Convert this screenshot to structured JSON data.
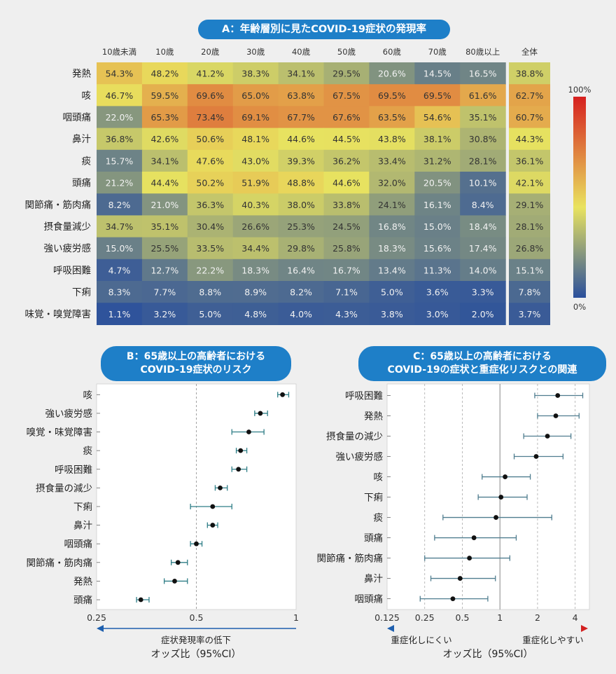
{
  "chart_data": [
    {
      "type": "heatmap",
      "title": "A：年齢層別に見たCOVID-19症状の発現率",
      "columns": [
        "10歳未満",
        "10歳",
        "20歳",
        "30歳",
        "40歳",
        "50歳",
        "60歳",
        "70歳",
        "80歳以上"
      ],
      "total_label": "全体",
      "rows": [
        "発熱",
        "咳",
        "咽頭痛",
        "鼻汁",
        "痰",
        "頭痛",
        "関節痛・筋肉痛",
        "摂食量減少",
        "強い疲労感",
        "呼吸困難",
        "下痢",
        "味覚・嗅覚障害"
      ],
      "values": [
        [
          54.3,
          48.2,
          41.2,
          38.3,
          34.1,
          29.5,
          20.6,
          14.5,
          16.5
        ],
        [
          46.7,
          59.5,
          69.6,
          65.0,
          63.8,
          67.5,
          69.5,
          69.5,
          61.6
        ],
        [
          22.0,
          65.3,
          73.4,
          69.1,
          67.7,
          67.6,
          63.5,
          54.6,
          35.1
        ],
        [
          36.8,
          42.6,
          50.6,
          48.1,
          44.6,
          44.5,
          43.8,
          38.1,
          30.8
        ],
        [
          15.7,
          34.1,
          47.6,
          43.0,
          39.3,
          36.2,
          33.4,
          31.2,
          28.1
        ],
        [
          21.2,
          44.4,
          50.2,
          51.9,
          48.8,
          44.6,
          32.0,
          20.5,
          10.1
        ],
        [
          8.2,
          21.0,
          36.3,
          40.3,
          38.0,
          33.8,
          24.1,
          16.1,
          8.4
        ],
        [
          34.7,
          35.1,
          30.4,
          26.6,
          25.3,
          24.5,
          16.8,
          15.0,
          18.4
        ],
        [
          15.0,
          25.5,
          33.5,
          34.4,
          29.8,
          25.8,
          18.3,
          15.6,
          17.4
        ],
        [
          4.7,
          12.7,
          22.2,
          18.3,
          16.4,
          16.7,
          13.4,
          11.3,
          14.0
        ],
        [
          8.3,
          7.7,
          8.8,
          8.9,
          8.2,
          7.1,
          5.0,
          3.6,
          3.3
        ],
        [
          1.1,
          3.2,
          5.0,
          4.8,
          4.0,
          4.3,
          3.8,
          3.0,
          2.0
        ]
      ],
      "totals": [
        38.8,
        62.7,
        60.7,
        44.3,
        36.1,
        42.1,
        29.1,
        28.1,
        26.8,
        15.1,
        7.8,
        3.7
      ],
      "colorbar": {
        "max_label": "100%",
        "min_label": "0%",
        "range": [
          0,
          100
        ],
        "colors": [
          "#2a4f9c",
          "#e9e35f",
          "#d6201f"
        ]
      }
    },
    {
      "type": "scatter",
      "title_lines": [
        "B：65歳以上の高齢者における",
        "COVID-19症状のリスク"
      ],
      "categories": [
        "咳",
        "強い疲労感",
        "嗅覚・味覚障害",
        "痰",
        "呼吸困難",
        "摂食量の減少",
        "下痢",
        "鼻汁",
        "咽頭痛",
        "関節痛・筋肉痛",
        "発熱",
        "頭痛"
      ],
      "estimate": [
        0.91,
        0.78,
        0.72,
        0.68,
        0.67,
        0.59,
        0.56,
        0.56,
        0.5,
        0.44,
        0.43,
        0.34
      ],
      "ci_low": [
        0.88,
        0.75,
        0.64,
        0.66,
        0.64,
        0.57,
        0.48,
        0.54,
        0.48,
        0.42,
        0.4,
        0.33
      ],
      "ci_high": [
        0.95,
        0.82,
        0.8,
        0.71,
        0.71,
        0.62,
        0.64,
        0.58,
        0.52,
        0.47,
        0.47,
        0.36
      ],
      "x_ticks": [
        "0.25",
        "0.5",
        "1"
      ],
      "xlim": [
        0.25,
        1
      ],
      "x_scale": "log",
      "reference_line": 0.5,
      "arrow_label": "症状発現率の低下",
      "xlabel": "オッズ比（95%CI）"
    },
    {
      "type": "scatter",
      "title_lines": [
        "C：65歳以上の高齢者における",
        "COVID-19の症状と重症化リスクとの関連"
      ],
      "categories": [
        "呼吸困難",
        "発熱",
        "摂食量の減少",
        "強い疲労感",
        "咳",
        "下痢",
        "痰",
        "頭痛",
        "関節痛・筋肉痛",
        "鼻汁",
        "咽頭痛"
      ],
      "estimate": [
        2.9,
        2.8,
        2.4,
        1.95,
        1.1,
        1.02,
        0.93,
        0.62,
        0.57,
        0.48,
        0.42
      ],
      "ci_low": [
        1.9,
        2.0,
        1.55,
        1.3,
        0.72,
        0.67,
        0.35,
        0.3,
        0.25,
        0.28,
        0.23
      ],
      "ci_high": [
        4.6,
        4.3,
        3.7,
        3.2,
        1.75,
        1.65,
        2.6,
        1.35,
        1.2,
        0.92,
        0.8
      ],
      "x_ticks": [
        "0.125",
        "0.25",
        "0.5",
        "1",
        "2",
        "4"
      ],
      "xlim": [
        0.125,
        5.2
      ],
      "x_scale": "log",
      "reference_line": 1,
      "left_arrow_label": "重症化しにくい",
      "right_arrow_label": "重症化しやすい",
      "xlabel": "オッズ比（95%CI）"
    }
  ]
}
